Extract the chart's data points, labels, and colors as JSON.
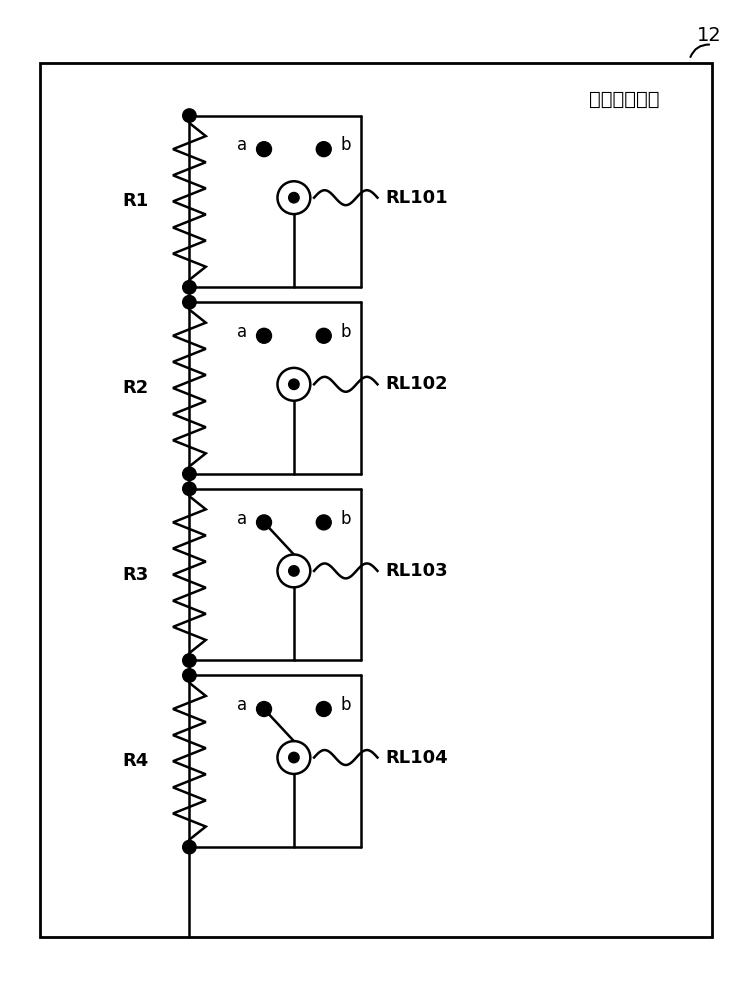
{
  "title": "可变电阻单元",
  "label_12": "12",
  "resistors": [
    "R1",
    "R2",
    "R3",
    "R4"
  ],
  "relays": [
    "RL101",
    "RL102",
    "RL103",
    "RL104"
  ],
  "bg_color": "#ffffff",
  "line_color": "#000000",
  "box_border_color": "#000000",
  "relay_open": [
    false,
    false,
    true,
    true
  ],
  "fig_width": 7.52,
  "fig_height": 10.0
}
